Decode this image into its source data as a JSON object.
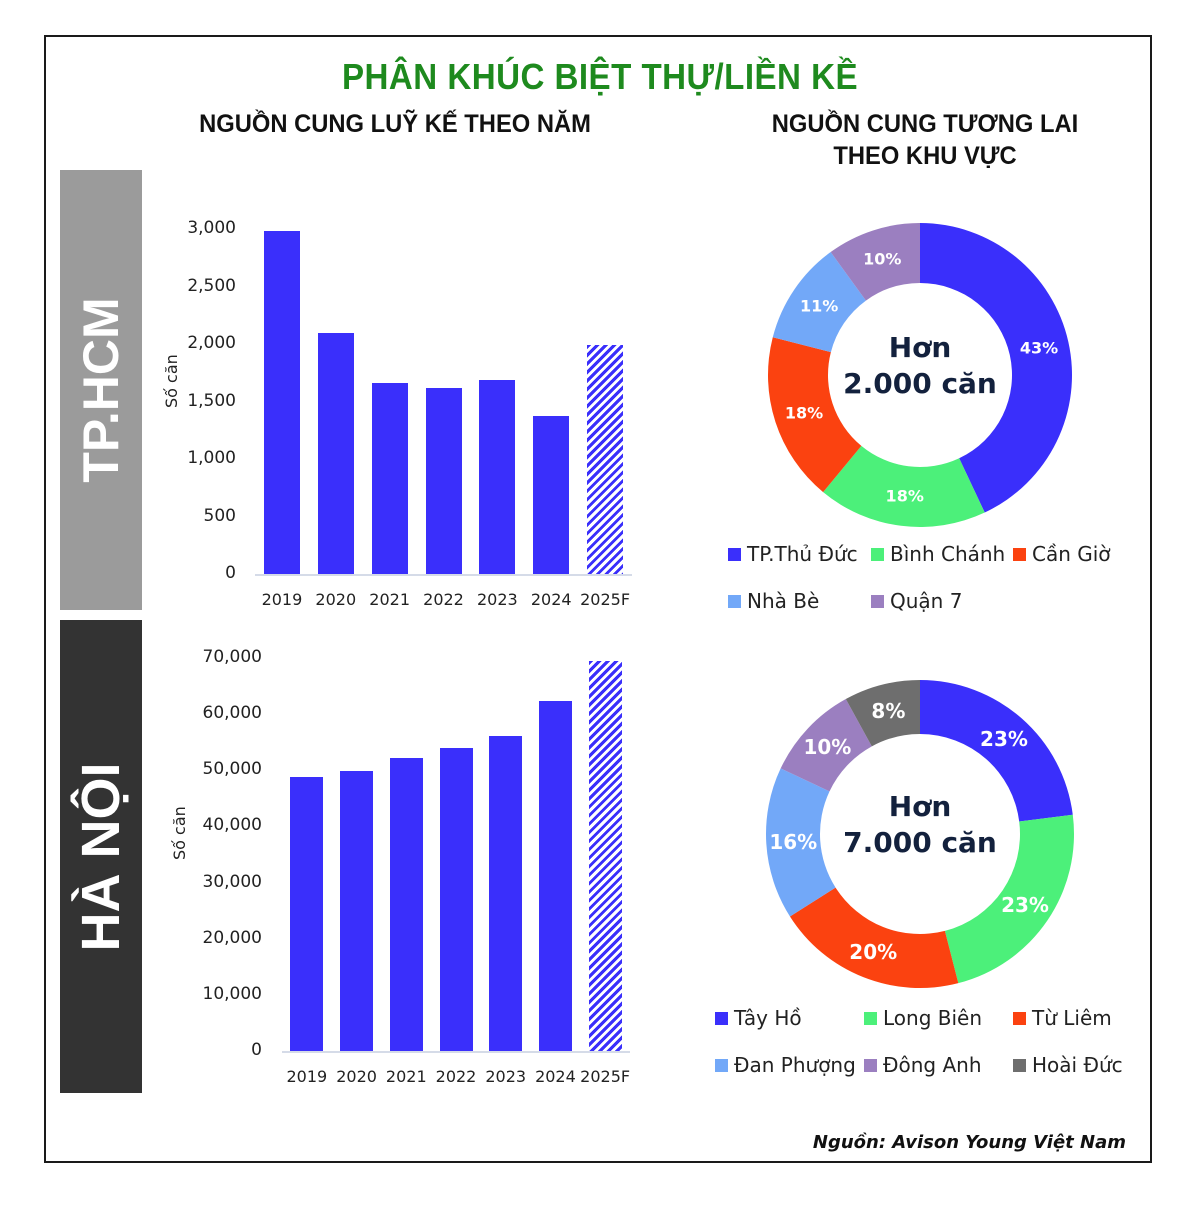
{
  "title": "PHÂN KHÚC BIỆT THỰ/LIỀN KỀ",
  "left_heading": "NGUỒN CUNG LUỸ KẾ THEO NĂM",
  "right_heading_line1": "NGUỒN CUNG TƯƠNG LAI",
  "right_heading_line2": "THEO KHU VỰC",
  "sections": {
    "hcm": {
      "label": "TP.HCM",
      "color": "#9b9b9b"
    },
    "hanoi": {
      "label": "HÀ NỘI",
      "color": "#333333"
    }
  },
  "source": "Nguồn: Avison Young Việt Nam",
  "colors": {
    "bar": "#3a2ffb",
    "title_green": "#1e8a1e",
    "tp_thu_duc": "#3a2ffb",
    "binh_chanh": "#4cf07a",
    "can_gio": "#fb4210",
    "nha_be": "#72a8f8",
    "quan7": "#9b7fc0",
    "hoai_duc": "#6e6e6e"
  },
  "chart_data": [
    {
      "type": "bar",
      "title": "TP.HCM - Nguồn cung luỹ kế theo năm",
      "xlabel": "",
      "ylabel": "Số căn",
      "categories": [
        "2019",
        "2020",
        "2021",
        "2022",
        "2023",
        "2024",
        "2025F"
      ],
      "values": [
        2980,
        2100,
        1660,
        1620,
        1690,
        1370,
        1990
      ],
      "yticks": [
        "0",
        "500",
        "1,000",
        "1,500",
        "2,000",
        "2,500",
        "3,000"
      ],
      "ylim": [
        0,
        3000
      ],
      "forecast_category": "2025F",
      "grid": false
    },
    {
      "type": "bar",
      "title": "Hà Nội - Nguồn cung luỹ kế theo năm",
      "xlabel": "",
      "ylabel": "Số căn",
      "categories": [
        "2019",
        "2020",
        "2021",
        "2022",
        "2023",
        "2024",
        "2025F"
      ],
      "values": [
        48800,
        49900,
        52200,
        54000,
        56100,
        62400,
        69500
      ],
      "yticks": [
        "0",
        "10,000",
        "20,000",
        "30,000",
        "40,000",
        "50,000",
        "60,000",
        "70,000"
      ],
      "ylim": [
        0,
        70000
      ],
      "forecast_category": "2025F",
      "grid": false
    },
    {
      "type": "pie",
      "subtype": "donut",
      "title": "TP.HCM - Nguồn cung tương lai theo khu vực",
      "center_text_line1": "Hơn",
      "center_text_line2": "2.000 căn",
      "categories": [
        "TP.Thủ Đức",
        "Bình Chánh",
        "Cần Giờ",
        "Nhà Bè",
        "Quận 7"
      ],
      "values": [
        43,
        18,
        18,
        11,
        10
      ],
      "labels": [
        "43%",
        "18%",
        "18%",
        "11%",
        "10%"
      ],
      "colors": [
        "#3a2ffb",
        "#4cf07a",
        "#fb4210",
        "#72a8f8",
        "#9b7fc0"
      ],
      "legend_position": "bottom"
    },
    {
      "type": "pie",
      "subtype": "donut",
      "title": "Hà Nội - Nguồn cung tương lai theo khu vực",
      "center_text_line1": "Hơn",
      "center_text_line2": "7.000 căn",
      "categories": [
        "Tây Hồ",
        "Long Biên",
        "Từ Liêm",
        "Đan Phượng",
        "Đông Anh",
        "Hoài Đức"
      ],
      "values": [
        23,
        23,
        20,
        16,
        10,
        8
      ],
      "labels": [
        "23%",
        "23%",
        "20%",
        "16%",
        "10%",
        "8%"
      ],
      "colors": [
        "#3a2ffb",
        "#4cf07a",
        "#fb4210",
        "#72a8f8",
        "#9b7fc0",
        "#6e6e6e"
      ],
      "legend_position": "bottom"
    }
  ]
}
